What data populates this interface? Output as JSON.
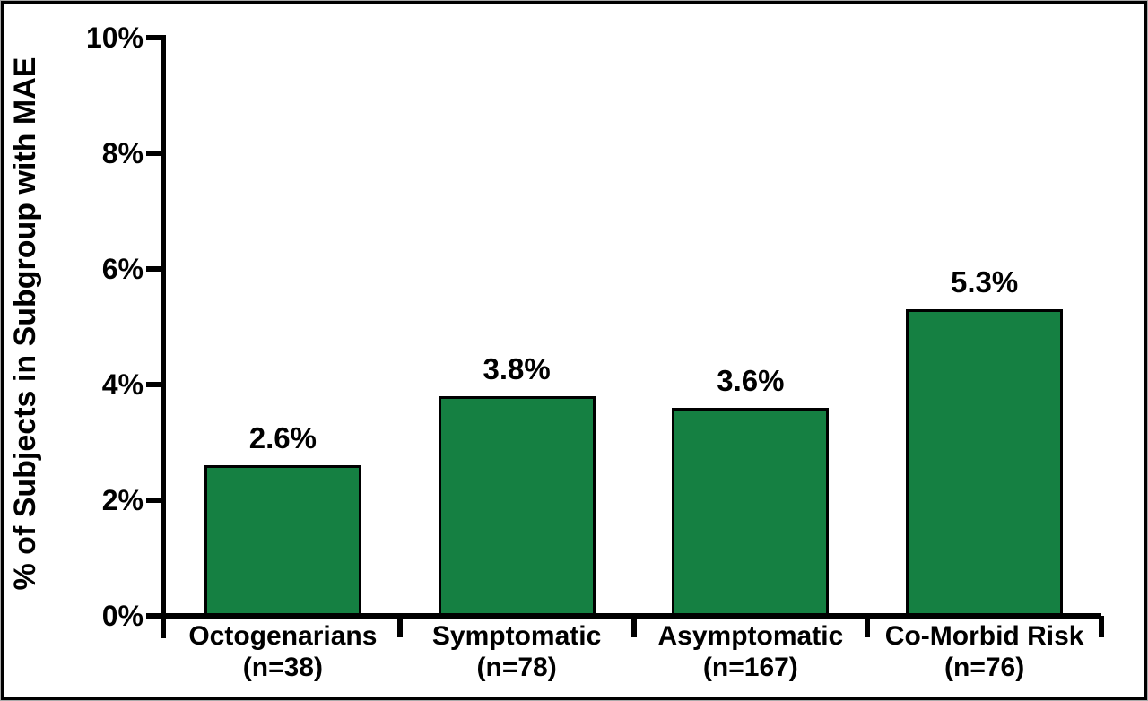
{
  "figure": {
    "background_color": "#ffffff",
    "frame_border_color": "#000000",
    "frame_outer_edge_color": "#a9a9a9"
  },
  "chart_data": {
    "type": "bar",
    "title": "",
    "xlabel": "",
    "ylabel": "% of Subjects in Subgroup with MAE",
    "categories": [
      "Octogenarians",
      "Symptomatic",
      "Asymptomatic",
      "Co-Morbid Risk"
    ],
    "category_sublabels": [
      "(n=38)",
      "(n=78)",
      "(n=167)",
      "(n=76)"
    ],
    "values": [
      2.6,
      3.8,
      3.6,
      5.3
    ],
    "value_labels": [
      "2.6%",
      "3.8%",
      "3.6%",
      "5.3%"
    ],
    "ylim": [
      0,
      10
    ],
    "yticks": [
      0,
      2,
      4,
      6,
      8,
      10
    ],
    "ytick_labels": [
      "0%",
      "2%",
      "4%",
      "6%",
      "8%",
      "10%"
    ],
    "grid": false,
    "legend": "none",
    "bar_fill_color": "#158042",
    "bar_border_color": "#000000",
    "axis_color": "#000000",
    "text_color": "#000000"
  }
}
